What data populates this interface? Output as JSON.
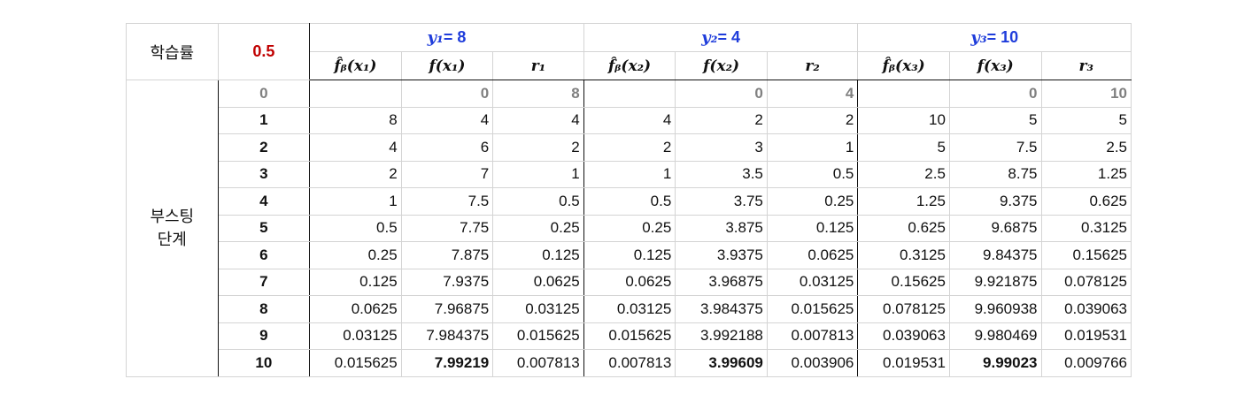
{
  "header": {
    "lr_label": "학습률",
    "lr_value": "0.5",
    "groups": [
      {
        "label": "y₁",
        "eq": "= 8",
        "cols": [
          "f̂ᵦ(x₁)",
          "f(x₁)",
          "r₁"
        ]
      },
      {
        "label": "y₂",
        "eq": "= 4",
        "cols": [
          "f̂ᵦ(x₂)",
          "f(x₂)",
          "r₂"
        ]
      },
      {
        "label": "y₃",
        "eq": "= 10",
        "cols": [
          "f̂ᵦ(x₃)",
          "f(x₃)",
          "r₃"
        ]
      }
    ]
  },
  "stage_label_line1": "부스팅",
  "stage_label_line2": "단계",
  "rows": [
    {
      "step": "0",
      "cells": [
        "",
        "0",
        "8",
        "",
        "0",
        "4",
        "",
        "0",
        "10"
      ]
    },
    {
      "step": "1",
      "cells": [
        "8",
        "4",
        "4",
        "4",
        "2",
        "2",
        "10",
        "5",
        "5"
      ]
    },
    {
      "step": "2",
      "cells": [
        "4",
        "6",
        "2",
        "2",
        "3",
        "1",
        "5",
        "7.5",
        "2.5"
      ]
    },
    {
      "step": "3",
      "cells": [
        "2",
        "7",
        "1",
        "1",
        "3.5",
        "0.5",
        "2.5",
        "8.75",
        "1.25"
      ]
    },
    {
      "step": "4",
      "cells": [
        "1",
        "7.5",
        "0.5",
        "0.5",
        "3.75",
        "0.25",
        "1.25",
        "9.375",
        "0.625"
      ]
    },
    {
      "step": "5",
      "cells": [
        "0.5",
        "7.75",
        "0.25",
        "0.25",
        "3.875",
        "0.125",
        "0.625",
        "9.6875",
        "0.3125"
      ]
    },
    {
      "step": "6",
      "cells": [
        "0.25",
        "7.875",
        "0.125",
        "0.125",
        "3.9375",
        "0.0625",
        "0.3125",
        "9.84375",
        "0.15625"
      ]
    },
    {
      "step": "7",
      "cells": [
        "0.125",
        "7.9375",
        "0.0625",
        "0.0625",
        "3.96875",
        "0.03125",
        "0.15625",
        "9.921875",
        "0.078125"
      ]
    },
    {
      "step": "8",
      "cells": [
        "0.0625",
        "7.96875",
        "0.03125",
        "0.03125",
        "3.984375",
        "0.015625",
        "0.078125",
        "9.960938",
        "0.039063"
      ]
    },
    {
      "step": "9",
      "cells": [
        "0.03125",
        "7.984375",
        "0.015625",
        "0.015625",
        "3.992188",
        "0.007813",
        "0.039063",
        "9.980469",
        "0.019531"
      ]
    },
    {
      "step": "10",
      "cells": [
        "0.015625",
        "7.99219",
        "0.007813",
        "0.007813",
        "3.99609",
        "0.003906",
        "0.019531",
        "9.99023",
        "0.009766"
      ]
    }
  ]
}
